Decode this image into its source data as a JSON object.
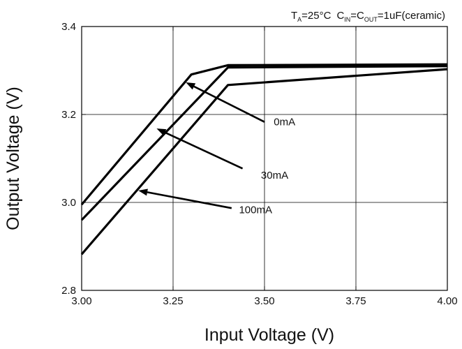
{
  "chart_data": {
    "type": "line",
    "xlabel": "Input Voltage (V)",
    "ylabel": "Output Voltage (V)",
    "xlim": [
      3.0,
      4.0
    ],
    "ylim": [
      2.8,
      3.4
    ],
    "xticks": [
      "3.00",
      "3.25",
      "3.50",
      "3.75",
      "4.00"
    ],
    "yticks": [
      "2.8",
      "3.0",
      "3.2",
      "3.4"
    ],
    "grid": true,
    "conditions": {
      "t_main": "T",
      "t_sub": "A",
      "t_rest": "=25°C",
      "c1_main": "C",
      "c1_sub": "IN",
      "c2_main": "=C",
      "c2_sub": "OUT",
      "c_rest": "=1uF(ceramic)"
    },
    "series": [
      {
        "name": "0mA",
        "x": [
          3.0,
          3.3,
          3.4,
          4.0
        ],
        "y": [
          2.995,
          3.291,
          3.312,
          3.314
        ]
      },
      {
        "name": "30mA",
        "x": [
          3.0,
          3.4,
          4.0
        ],
        "y": [
          2.96,
          3.307,
          3.31
        ]
      },
      {
        "name": "100mA",
        "x": [
          3.0,
          3.4,
          4.0
        ],
        "y": [
          2.882,
          3.267,
          3.303
        ]
      }
    ],
    "annotations": [
      {
        "label": "0mA",
        "text_at": [
          3.51,
          3.183
        ],
        "arrow_from": [
          3.5,
          3.183
        ],
        "arrow_to": [
          3.285,
          3.273
        ]
      },
      {
        "label": "30mA",
        "text_at": [
          3.475,
          3.062
        ],
        "arrow_from": [
          3.44,
          3.077
        ],
        "arrow_to": [
          3.205,
          3.168
        ]
      },
      {
        "label": "100mA",
        "text_at": [
          3.415,
          2.983
        ],
        "arrow_from": [
          3.41,
          2.987
        ],
        "arrow_to": [
          3.155,
          3.027
        ]
      }
    ]
  }
}
